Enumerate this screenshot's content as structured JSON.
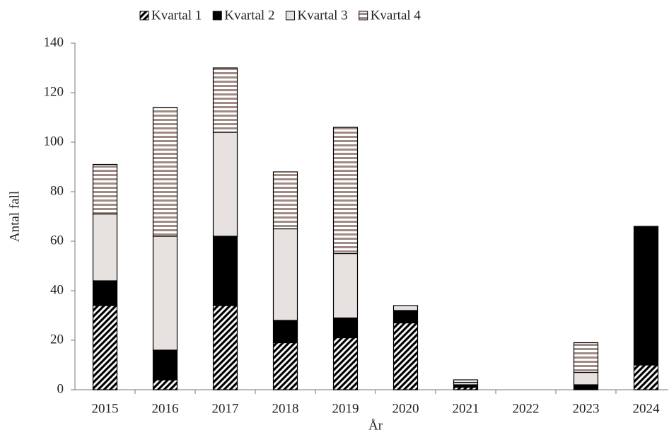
{
  "chart_data": {
    "type": "stacked_bar",
    "x_label": "År",
    "y_label": "Antal fall",
    "categories": [
      "2015",
      "2016",
      "2017",
      "2018",
      "2019",
      "2020",
      "2021",
      "2022",
      "2023",
      "2024"
    ],
    "series": [
      {
        "name": "Kvartal 1",
        "color": "#000000",
        "pattern": "diagonal",
        "values": [
          34,
          4,
          34,
          19,
          21,
          27,
          1,
          0,
          0,
          10
        ]
      },
      {
        "name": "Kvartal 2",
        "color": "#000000",
        "pattern": "solid",
        "values": [
          10,
          12,
          28,
          9,
          8,
          5,
          1,
          0,
          2,
          56
        ]
      },
      {
        "name": "Kvartal 3",
        "color": "#e7e2df",
        "pattern": "solid",
        "values": [
          27,
          46,
          42,
          37,
          26,
          2,
          1,
          0,
          5,
          0
        ]
      },
      {
        "name": "Kvartal 4",
        "color": "#a08c84",
        "pattern": "horizontal",
        "values": [
          20,
          52,
          26,
          23,
          51,
          0,
          1,
          0,
          12,
          0
        ]
      }
    ],
    "ylim": [
      0,
      140
    ],
    "yticks": [
      0,
      20,
      40,
      60,
      80,
      100,
      120,
      140
    ],
    "legend": "top"
  }
}
